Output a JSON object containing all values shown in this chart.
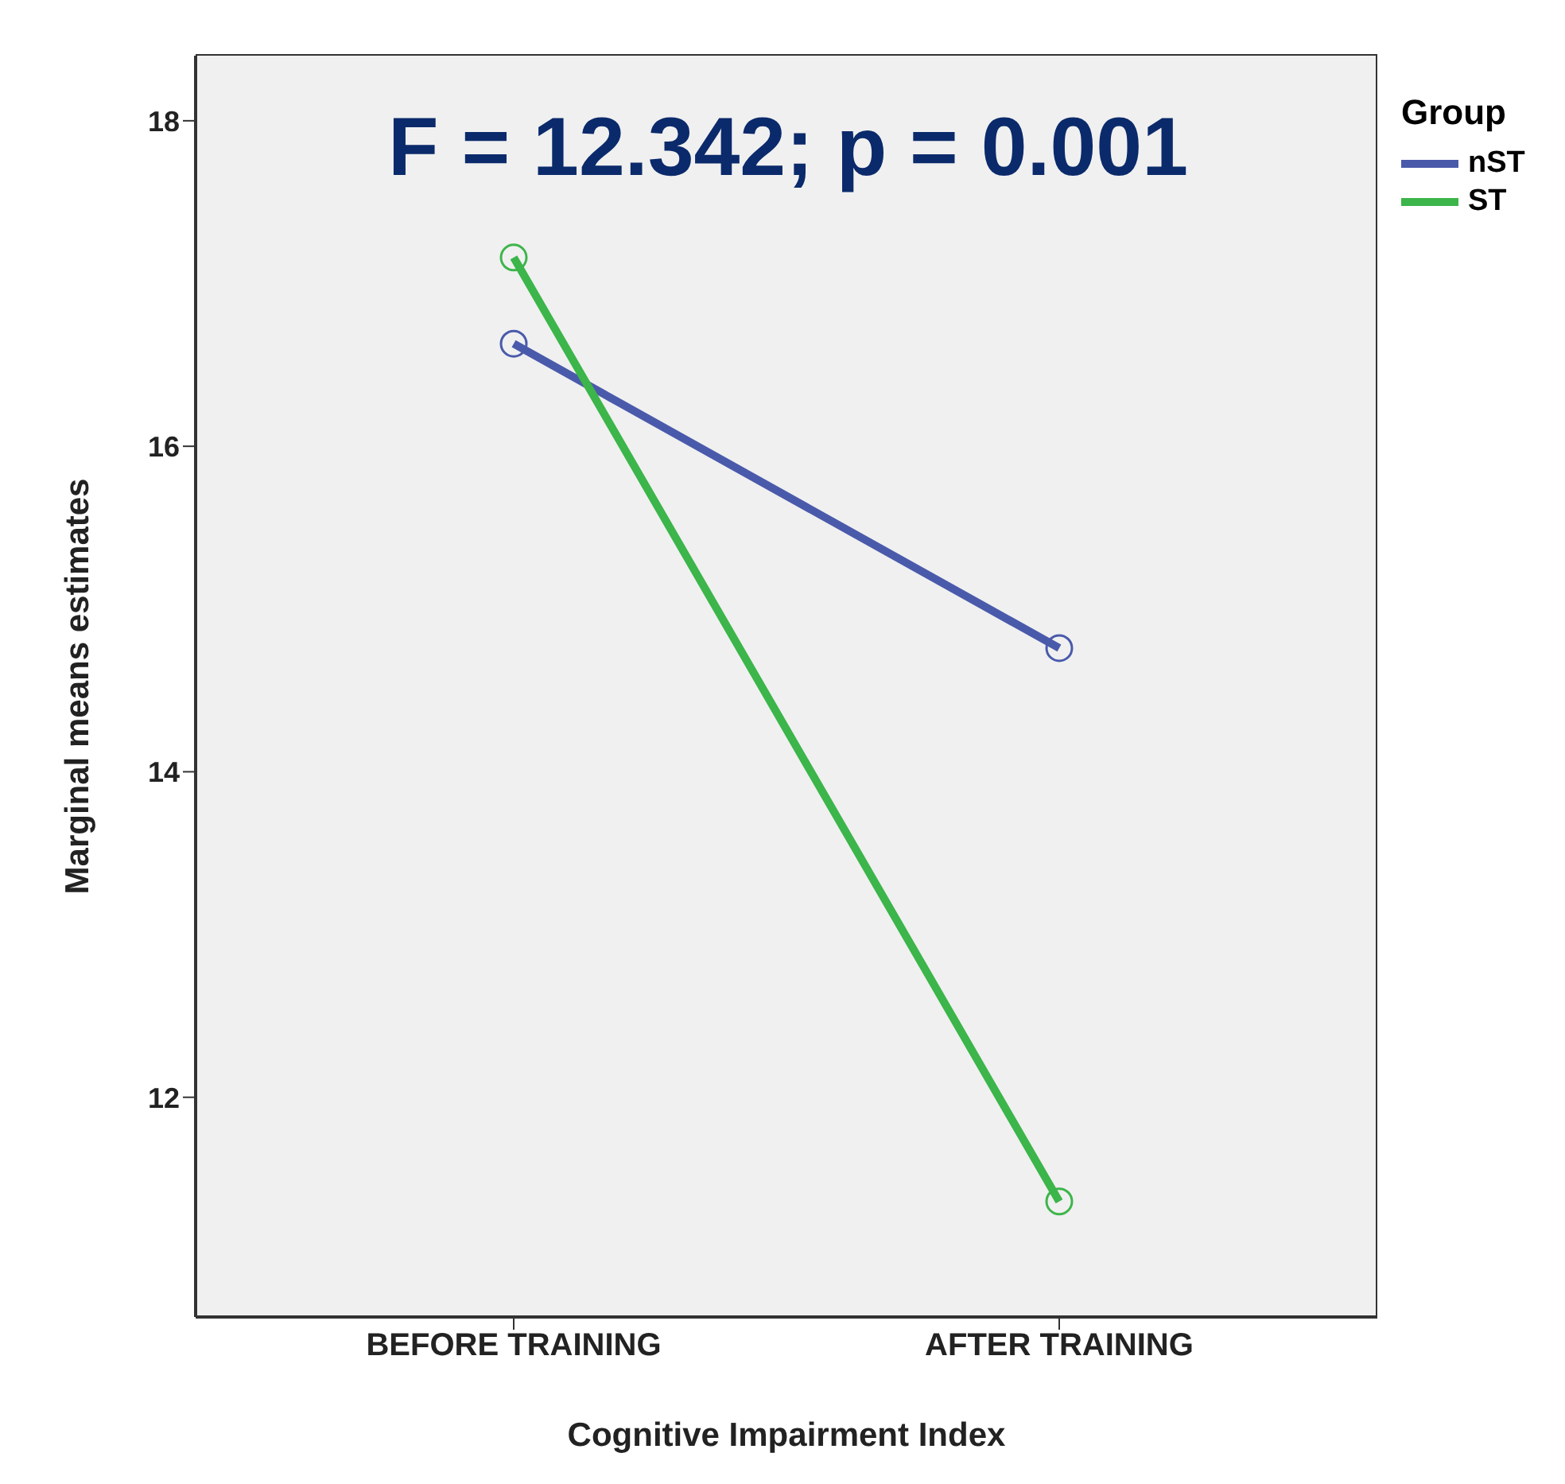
{
  "chart_data": {
    "type": "line",
    "xlabel": "Cognitive Impairment Index",
    "ylabel": "Marginal means estimates",
    "legend_title": "Group",
    "categories": [
      "BEFORE TRAINING",
      "AFTER TRAINING"
    ],
    "series": [
      {
        "name": "nST",
        "color": "#4a5aab",
        "values": [
          16.63,
          14.76
        ]
      },
      {
        "name": "ST",
        "color": "#3cb54a",
        "values": [
          17.16,
          11.36
        ]
      }
    ],
    "ylim": [
      10.65,
      18.4
    ],
    "yticks": [
      12,
      14,
      16,
      18
    ],
    "grid": false,
    "legend": "top right",
    "marker": "circle",
    "line_style": "solid",
    "annotations": [
      "F = 12.342; p = 0.001"
    ]
  }
}
